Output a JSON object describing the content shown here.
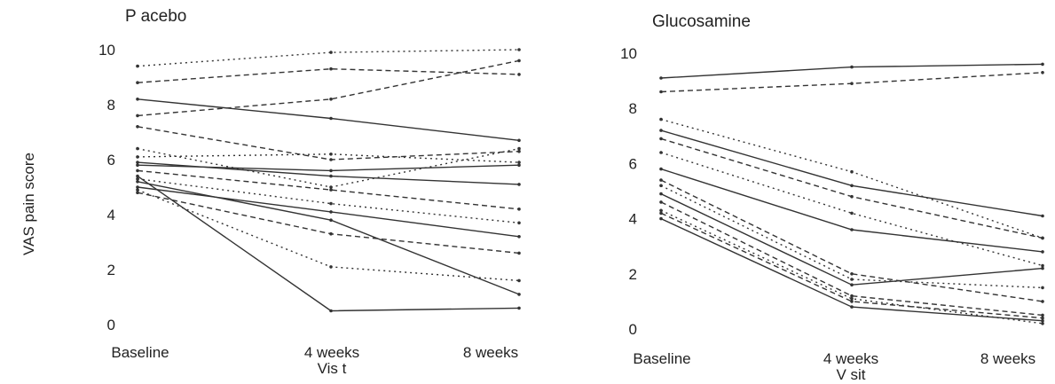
{
  "ylabel": "VAS pain score",
  "chart_data": [
    {
      "type": "line",
      "title": "P acebo",
      "categories": [
        "Baseline",
        "4 weeks",
        "8 weeks"
      ],
      "xlabel": "Vis t",
      "ylabel": "VAS pain score",
      "ylim": [
        0,
        10
      ],
      "yticks": [
        0,
        2,
        4,
        6,
        8,
        10
      ],
      "grid": false,
      "line_color": "#333333",
      "series": [
        {
          "values": [
            5.8,
            5.6,
            5.8
          ]
        },
        {
          "values": [
            7.6,
            8.2,
            9.6
          ]
        },
        {
          "values": [
            9.4,
            9.9,
            10.0
          ]
        },
        {
          "values": [
            8.2,
            7.5,
            6.7
          ]
        },
        {
          "values": [
            7.2,
            6.0,
            6.3
          ]
        },
        {
          "values": [
            6.4,
            5.0,
            6.4
          ]
        },
        {
          "values": [
            5.9,
            5.4,
            5.1
          ]
        },
        {
          "values": [
            5.6,
            4.9,
            4.2
          ]
        },
        {
          "values": [
            5.3,
            4.4,
            3.7
          ]
        },
        {
          "values": [
            5.0,
            4.1,
            3.2
          ]
        },
        {
          "values": [
            4.8,
            3.3,
            2.6
          ]
        },
        {
          "values": [
            4.9,
            2.1,
            1.6
          ]
        },
        {
          "values": [
            5.4,
            0.5,
            0.6
          ]
        },
        {
          "values": [
            8.8,
            9.3,
            9.1
          ]
        },
        {
          "values": [
            6.1,
            6.2,
            5.9
          ]
        },
        {
          "values": [
            5.2,
            3.8,
            1.1
          ]
        }
      ]
    },
    {
      "type": "line",
      "title": "Glucosamine",
      "categories": [
        "Baseline",
        "4 weeks",
        "8 weeks"
      ],
      "xlabel": "V sit",
      "ylabel": "",
      "ylim": [
        0,
        10
      ],
      "yticks": [
        0,
        2,
        4,
        6,
        8,
        10
      ],
      "grid": false,
      "line_color": "#333333",
      "series": [
        {
          "values": [
            9.1,
            9.5,
            9.6
          ]
        },
        {
          "values": [
            8.6,
            8.9,
            9.3
          ]
        },
        {
          "values": [
            7.6,
            5.7,
            3.3
          ]
        },
        {
          "values": [
            7.2,
            5.2,
            4.1
          ]
        },
        {
          "values": [
            6.9,
            4.8,
            3.3
          ]
        },
        {
          "values": [
            6.4,
            4.2,
            2.3
          ]
        },
        {
          "values": [
            5.8,
            3.6,
            2.8
          ]
        },
        {
          "values": [
            5.4,
            2.0,
            1.0
          ]
        },
        {
          "values": [
            5.2,
            1.8,
            1.5
          ]
        },
        {
          "values": [
            4.9,
            1.6,
            2.2
          ]
        },
        {
          "values": [
            4.6,
            1.2,
            0.5
          ]
        },
        {
          "values": [
            4.3,
            1.1,
            0.2
          ]
        },
        {
          "values": [
            4.0,
            0.8,
            0.3
          ]
        },
        {
          "values": [
            4.2,
            1.0,
            0.4
          ]
        }
      ]
    }
  ]
}
